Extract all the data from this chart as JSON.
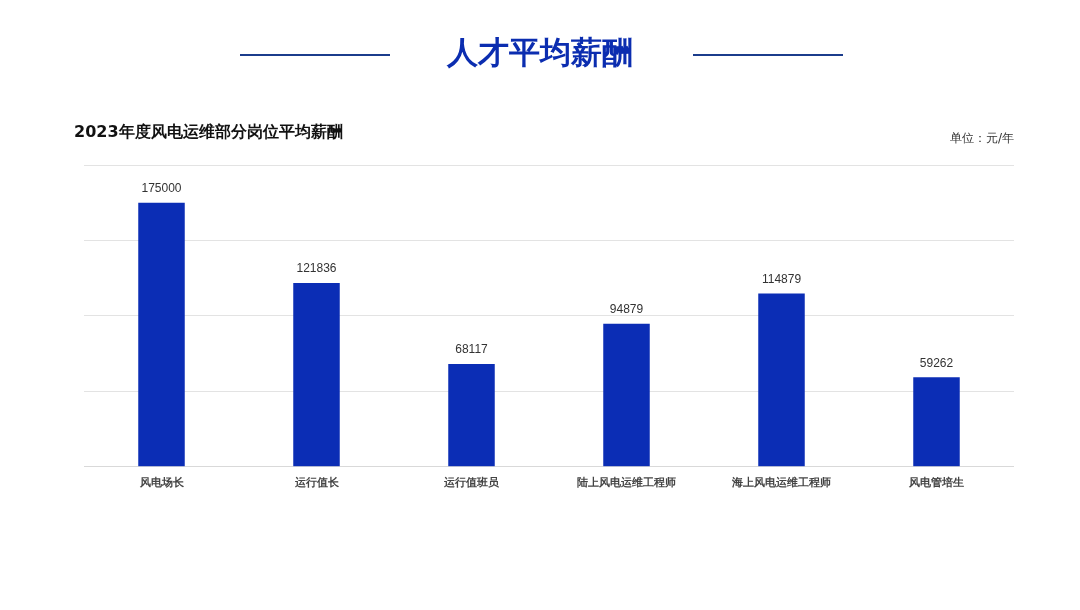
{
  "chart_data": {
    "type": "bar",
    "title": "人才平均薪酬",
    "subtitle": "2023年度风电运维部分岗位平均薪酬",
    "annotations": [
      "单位：元/年"
    ],
    "categories": [
      "风电场长",
      "运行值长",
      "运行值班员",
      "陆上风电运维工程师",
      "海上风电运维工程师",
      "风电管培生"
    ],
    "values": [
      175000,
      121836,
      68117,
      94879,
      114879,
      59262
    ],
    "color": "#0b2db5",
    "ylim": [
      0,
      200000
    ],
    "yticks": [
      {
        "value": 0,
        "label": null
      },
      {
        "value": 50000,
        "label": null
      },
      {
        "value": 100000,
        "label": null
      },
      {
        "value": 150000,
        "label": null
      },
      {
        "value": 200000,
        "label": null
      }
    ],
    "tick_labels": "x",
    "grid": "y",
    "legend": false,
    "data_labels": true
  }
}
